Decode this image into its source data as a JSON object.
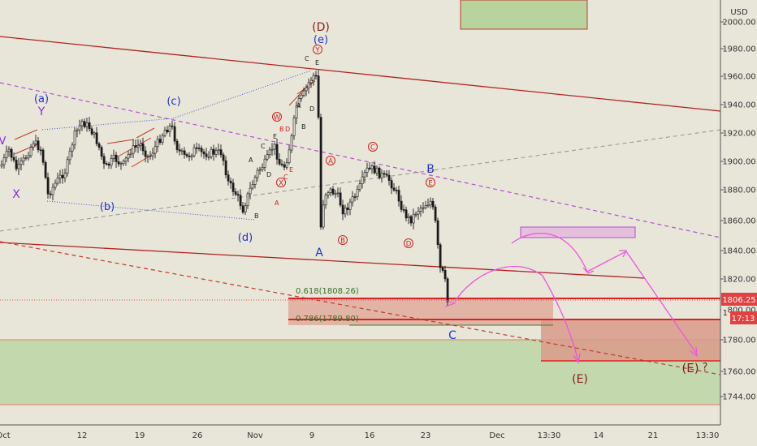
{
  "chart_data": {
    "type": "candlestick",
    "currency": "USD",
    "y_ticks": [
      "2000.00",
      "1980.00",
      "1960.00",
      "1940.00",
      "1920.00",
      "1900.00",
      "1880.00",
      "1860.00",
      "1840.00",
      "1820.00",
      "1800.00",
      "1780.00",
      "1760.00",
      "1744.00"
    ],
    "x_ticks": [
      "Oct",
      "12",
      "19",
      "26",
      "Nov",
      "9",
      "16",
      "23",
      "Dec",
      "13:30",
      "14",
      "21",
      "13:30"
    ],
    "current_price": "1806.25",
    "countdown": "17:13",
    "price_partial_label": "1",
    "fib_levels": [
      {
        "label": "0.618(1808.26)",
        "value": 1808.26
      },
      {
        "label": "0.786(1789.80)",
        "value": 1789.8
      }
    ],
    "wave_labels": {
      "a_paren": "(a)",
      "Y_left": "Y",
      "X_left": "X",
      "V_left": "V",
      "b_paren": "(b)",
      "c_paren": "(c)",
      "d_paren": "(d)",
      "e_paren": "(e)",
      "D_big": "(D)",
      "E_big_bottom": "(E)",
      "E_big_right": "(E)",
      "question": "?",
      "A_big": "A",
      "B_big": "B",
      "C_big": "C",
      "circ_Y": "Y",
      "circ_W": "W",
      "circ_X": "X",
      "circ_A": "A",
      "circ_B": "B",
      "circ_C": "C",
      "circ_D": "D",
      "circ_E": "E",
      "small_A1": "A",
      "small_B1": "B",
      "small_C1": "C",
      "small_D1": "D",
      "small_E1": "E",
      "small_A2": "A",
      "small_B2": "B",
      "small_C2": "C",
      "small_D2": "D",
      "small_E2": "E",
      "small_A3": "A",
      "small_B3": "B",
      "small_C3": "C",
      "small_D3": "D",
      "small_E3": "E",
      "small_A4": "A",
      "small_B4": "B"
    },
    "colors": {
      "background": "#e8e6d9",
      "candle": "#1a1a1a",
      "channel_red": "#b22222",
      "purple_dashed": "#b44fd1",
      "blue_dotted": "#4455cc",
      "magenta_path": "#ee55dd",
      "green_zone": "#bcd6a4",
      "red_zone": "#e0a899",
      "price_label": "#e34040",
      "wave_blue": "#2233cc",
      "wave_red": "#cc2222",
      "wave_dark_red": "#8b1a1a"
    }
  }
}
